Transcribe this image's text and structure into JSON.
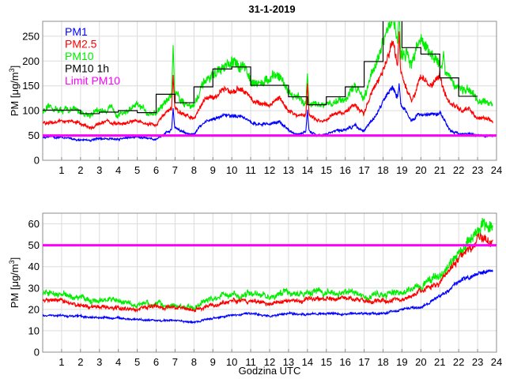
{
  "title": "31-1-2019",
  "colors": {
    "PM1": "#0000ff",
    "PM2.5": "#ff0000",
    "PM10": "#00ee00",
    "PM10 1h": "#000000",
    "Limit PM10": "#ff00ff",
    "grid": "#dcdcdc",
    "axis": "#8c8c8c"
  },
  "chart_data": [
    {
      "type": "line",
      "title": "31-1-2019",
      "xlabel": "",
      "ylabel": "PM [μg/m³]",
      "xlim": [
        0,
        24
      ],
      "ylim": [
        0,
        280
      ],
      "grid": true,
      "legend_position": "top-left",
      "data_end_hour": 23.8,
      "x_ticks": [
        "1",
        "2",
        "3",
        "4",
        "5",
        "6",
        "7",
        "8",
        "9",
        "10",
        "11",
        "12",
        "13",
        "14",
        "15",
        "16",
        "17",
        "18",
        "19",
        "20",
        "21",
        "22",
        "23",
        "24"
      ],
      "y_ticks": [
        "0",
        "50",
        "100",
        "150",
        "200",
        "250"
      ],
      "legend": [
        "PM1",
        "PM2.5",
        "PM10",
        "PM10 1h",
        "Limit PM10"
      ],
      "x_step": 0.5,
      "series": [
        {
          "name": "PM10",
          "noise": 0.07,
          "values": [
            100,
            105,
            100,
            102,
            98,
            92,
            100,
            105,
            95,
            100,
            108,
            98,
            95,
            118,
            140,
            115,
            112,
            150,
            170,
            185,
            190,
            195,
            165,
            158,
            160,
            170,
            140,
            125,
            115,
            110,
            108,
            120,
            125,
            150,
            130,
            190,
            230,
            290,
            210,
            200,
            250,
            210,
            200,
            160,
            150,
            140,
            115,
            115,
            100
          ],
          "spikes": [
            [
              6.9,
              232
            ],
            [
              14.0,
              175
            ],
            [
              18.85,
              300
            ],
            [
              21.2,
              220
            ]
          ]
        },
        {
          "name": "PM2.5",
          "noise": 0.05,
          "values": [
            75,
            80,
            78,
            80,
            72,
            65,
            75,
            78,
            72,
            75,
            80,
            72,
            70,
            95,
            105,
            90,
            85,
            120,
            130,
            140,
            140,
            145,
            125,
            112,
            112,
            125,
            100,
            90,
            95,
            80,
            80,
            95,
            100,
            110,
            95,
            145,
            180,
            235,
            170,
            120,
            165,
            150,
            170,
            115,
            105,
            100,
            85,
            85,
            75
          ],
          "spikes": [
            [
              6.9,
              172
            ],
            [
              14.0,
              155
            ],
            [
              18.85,
              260
            ]
          ]
        },
        {
          "name": "PM1",
          "noise": 0.05,
          "values": [
            45,
            48,
            46,
            45,
            40,
            40,
            45,
            44,
            42,
            45,
            48,
            45,
            42,
            55,
            65,
            55,
            52,
            75,
            85,
            88,
            90,
            92,
            80,
            72,
            72,
            80,
            60,
            52,
            60,
            50,
            52,
            58,
            60,
            70,
            58,
            85,
            115,
            150,
            110,
            80,
            95,
            90,
            100,
            60,
            55,
            55,
            50,
            50,
            48
          ],
          "spikes": [
            [
              6.9,
              105
            ],
            [
              14.0,
              102
            ],
            [
              18.85,
              155
            ]
          ]
        }
      ],
      "hourly_PM10_1h": {
        "name": "PM10 1h",
        "values": [
          101,
          101,
          94,
          97,
          100,
          96,
          133,
          116,
          148,
          184,
          188,
          151,
          151,
          128,
          112,
          128,
          148,
          199,
          300,
          227,
          214,
          166,
          129
        ]
      },
      "limit": {
        "name": "Limit PM10",
        "value": 50
      }
    },
    {
      "type": "line",
      "title": "",
      "xlabel": "Godzina UTC",
      "ylabel": "PM [μg/m³]",
      "xlim": [
        0,
        24
      ],
      "ylim": [
        0,
        65
      ],
      "grid": true,
      "data_end_hour": 23.8,
      "x_ticks": [
        "1",
        "2",
        "3",
        "4",
        "5",
        "6",
        "7",
        "8",
        "9",
        "10",
        "11",
        "12",
        "13",
        "14",
        "15",
        "16",
        "17",
        "18",
        "19",
        "20",
        "21",
        "22",
        "23",
        "24"
      ],
      "y_ticks": [
        "0",
        "10",
        "20",
        "30",
        "40",
        "50",
        "60"
      ],
      "x_step": 1,
      "series": [
        {
          "name": "PM10",
          "noise": 0.06,
          "values": [
            27,
            27,
            25,
            24,
            24,
            22,
            22,
            22,
            21,
            25,
            27,
            27,
            26,
            28,
            28,
            28,
            28,
            27,
            27,
            28,
            31,
            36,
            47,
            58,
            60
          ]
        },
        {
          "name": "PM2.5",
          "noise": 0.045,
          "values": [
            24,
            24,
            22,
            21,
            21,
            20,
            21,
            21,
            20,
            22,
            24,
            24,
            23,
            24,
            25,
            25,
            25,
            24,
            24,
            25,
            28,
            32,
            44,
            52,
            53
          ]
        },
        {
          "name": "PM1",
          "noise": 0.03,
          "values": [
            17,
            17,
            17,
            16,
            16,
            15,
            15,
            15,
            14,
            16,
            17,
            18,
            17,
            18,
            18,
            18,
            18,
            18,
            18,
            20,
            21,
            26,
            33,
            37,
            38
          ]
        }
      ],
      "limit": {
        "name": "Limit PM10",
        "value": 50
      }
    }
  ]
}
